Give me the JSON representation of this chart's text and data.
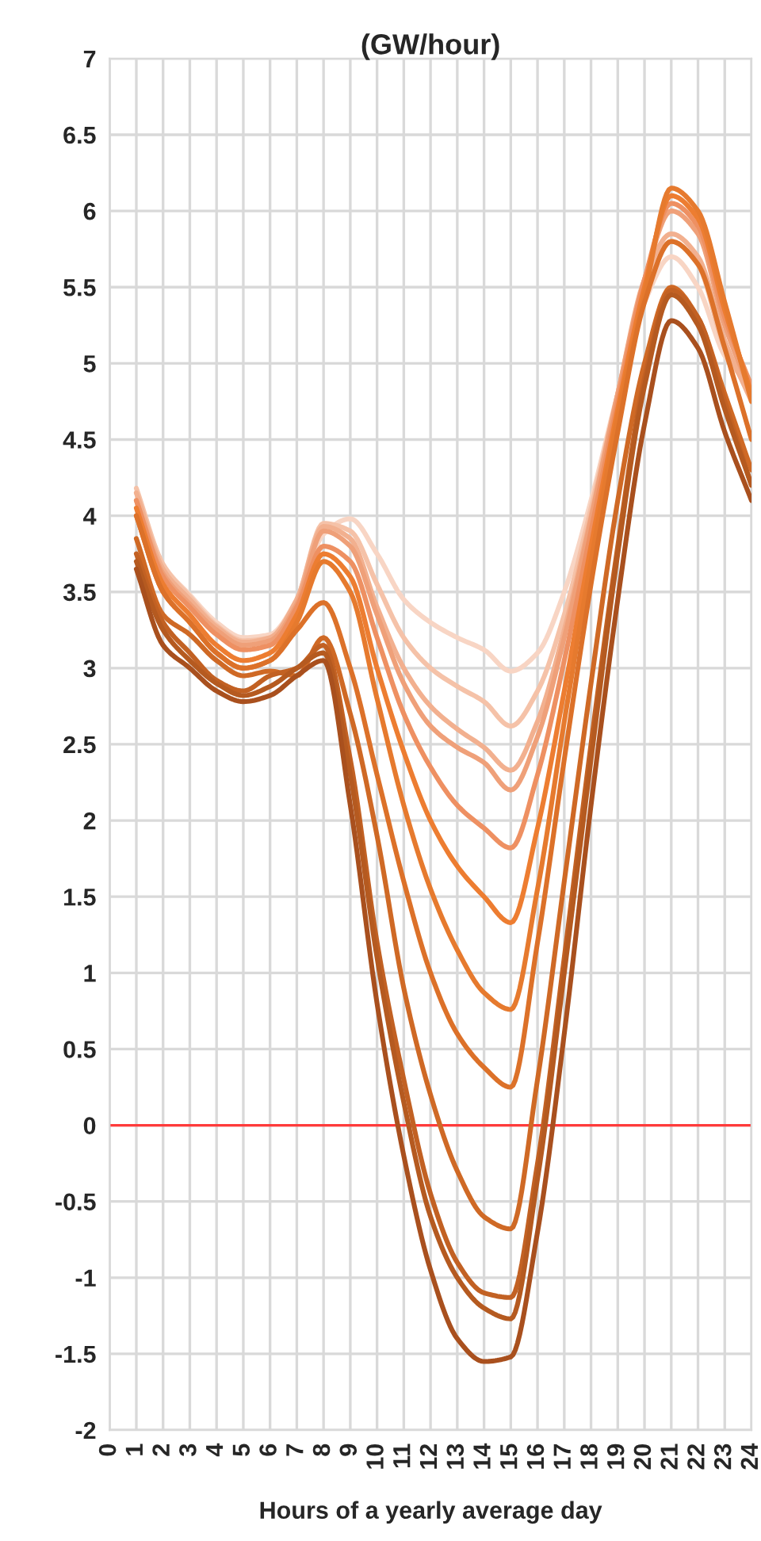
{
  "chart_data": {
    "type": "line",
    "title": "(GW/hour)",
    "xlabel": "Hours of a yearly average day",
    "x": [
      1,
      2,
      3,
      4,
      5,
      6,
      7,
      8,
      9,
      10,
      11,
      12,
      13,
      14,
      15,
      16,
      17,
      18,
      19,
      20,
      21,
      22,
      23,
      24
    ],
    "series": [
      {
        "color": "#f8d5c4",
        "values": [
          4.15,
          3.68,
          3.48,
          3.3,
          3.2,
          3.22,
          3.45,
          3.88,
          3.98,
          3.75,
          3.45,
          3.3,
          3.2,
          3.12,
          2.98,
          3.1,
          3.5,
          4.1,
          4.8,
          5.4,
          5.7,
          5.5,
          5.05,
          4.85
        ]
      },
      {
        "color": "#f5c2a8",
        "values": [
          4.18,
          3.68,
          3.47,
          3.28,
          3.18,
          3.2,
          3.45,
          3.95,
          3.9,
          3.55,
          3.2,
          3.0,
          2.88,
          2.78,
          2.62,
          2.85,
          3.35,
          4.05,
          4.8,
          5.5,
          5.8,
          5.65,
          5.1,
          4.8
        ]
      },
      {
        "color": "#f2b08f",
        "values": [
          4.15,
          3.65,
          3.45,
          3.27,
          3.17,
          3.2,
          3.45,
          3.93,
          3.85,
          3.4,
          3.0,
          2.75,
          2.6,
          2.48,
          2.33,
          2.65,
          3.25,
          4.0,
          4.8,
          5.55,
          5.85,
          5.7,
          5.15,
          4.75
        ]
      },
      {
        "color": "#efa079",
        "values": [
          4.1,
          3.62,
          3.42,
          3.25,
          3.15,
          3.18,
          3.42,
          3.9,
          3.8,
          3.35,
          2.9,
          2.62,
          2.48,
          2.38,
          2.2,
          2.55,
          3.2,
          3.98,
          4.8,
          5.55,
          6.0,
          5.85,
          5.25,
          4.8
        ]
      },
      {
        "color": "#ee9062",
        "values": [
          4.1,
          3.6,
          3.4,
          3.22,
          3.12,
          3.15,
          3.4,
          3.8,
          3.7,
          3.2,
          2.7,
          2.35,
          2.1,
          1.95,
          1.82,
          2.3,
          3.05,
          3.9,
          4.75,
          5.55,
          6.05,
          5.9,
          5.3,
          4.85
        ]
      },
      {
        "color": "#ed7d31",
        "values": [
          4.05,
          3.55,
          3.35,
          3.15,
          3.05,
          3.1,
          3.35,
          3.75,
          3.6,
          3.0,
          2.45,
          2.0,
          1.7,
          1.5,
          1.33,
          1.95,
          2.85,
          3.8,
          4.7,
          5.5,
          6.1,
          5.95,
          5.35,
          4.8
        ]
      },
      {
        "color": "#e67a2e",
        "values": [
          4.0,
          3.5,
          3.3,
          3.1,
          3.0,
          3.05,
          3.3,
          3.7,
          3.5,
          2.8,
          2.1,
          1.55,
          1.15,
          0.87,
          0.76,
          1.55,
          2.65,
          3.7,
          4.65,
          5.45,
          6.15,
          6.0,
          5.4,
          4.75
        ]
      },
      {
        "color": "#dc7129",
        "values": [
          4.0,
          3.5,
          3.3,
          3.1,
          3.0,
          3.05,
          3.25,
          3.43,
          3.0,
          2.3,
          1.6,
          1.0,
          0.6,
          0.38,
          0.25,
          1.2,
          2.4,
          3.55,
          4.55,
          5.4,
          5.8,
          5.65,
          5.1,
          4.5
        ]
      },
      {
        "color": "#cf6925",
        "values": [
          3.85,
          3.35,
          3.22,
          3.05,
          2.95,
          2.98,
          2.95,
          3.2,
          2.7,
          1.9,
          0.9,
          0.2,
          -0.3,
          -0.6,
          -0.68,
          0.3,
          1.6,
          2.9,
          4.1,
          5.0,
          5.5,
          5.3,
          4.8,
          4.3
        ]
      },
      {
        "color": "#c26123",
        "values": [
          3.75,
          3.3,
          3.1,
          2.92,
          2.85,
          2.95,
          3.0,
          3.15,
          2.4,
          1.2,
          0.3,
          -0.45,
          -0.9,
          -1.1,
          -1.13,
          -0.25,
          1.1,
          2.5,
          3.8,
          4.9,
          5.48,
          5.3,
          4.75,
          4.2
        ]
      },
      {
        "color": "#b55a20",
        "values": [
          3.7,
          3.25,
          3.05,
          2.9,
          2.82,
          2.88,
          3.0,
          3.1,
          2.3,
          1.1,
          0.15,
          -0.6,
          -1.0,
          -1.2,
          -1.27,
          -0.35,
          1.0,
          2.4,
          3.75,
          4.85,
          5.45,
          5.25,
          4.7,
          4.2
        ]
      },
      {
        "color": "#a9501e",
        "values": [
          3.65,
          3.15,
          3.0,
          2.85,
          2.78,
          2.82,
          2.95,
          3.05,
          2.1,
          0.8,
          -0.2,
          -0.95,
          -1.4,
          -1.55,
          -1.52,
          -0.7,
          0.6,
          2.1,
          3.45,
          4.6,
          5.28,
          5.1,
          4.55,
          4.1
        ]
      }
    ],
    "xlim": [
      0,
      24
    ],
    "xticks": [
      0,
      1,
      2,
      3,
      4,
      5,
      6,
      7,
      8,
      9,
      10,
      11,
      12,
      13,
      14,
      15,
      16,
      17,
      18,
      19,
      20,
      21,
      22,
      23,
      24
    ],
    "ylim": [
      -2,
      7
    ],
    "yticks": [
      -2,
      -1.5,
      -1,
      -0.5,
      0,
      0.5,
      1,
      1.5,
      2,
      2.5,
      3,
      3.5,
      4,
      4.5,
      5,
      5.5,
      6,
      6.5,
      7
    ],
    "ref_lines": [
      {
        "axis": "y",
        "value": 0,
        "color": "#ff3b3b"
      }
    ],
    "grid": true,
    "legend": false,
    "marker": "none",
    "line_style": "solid"
  }
}
